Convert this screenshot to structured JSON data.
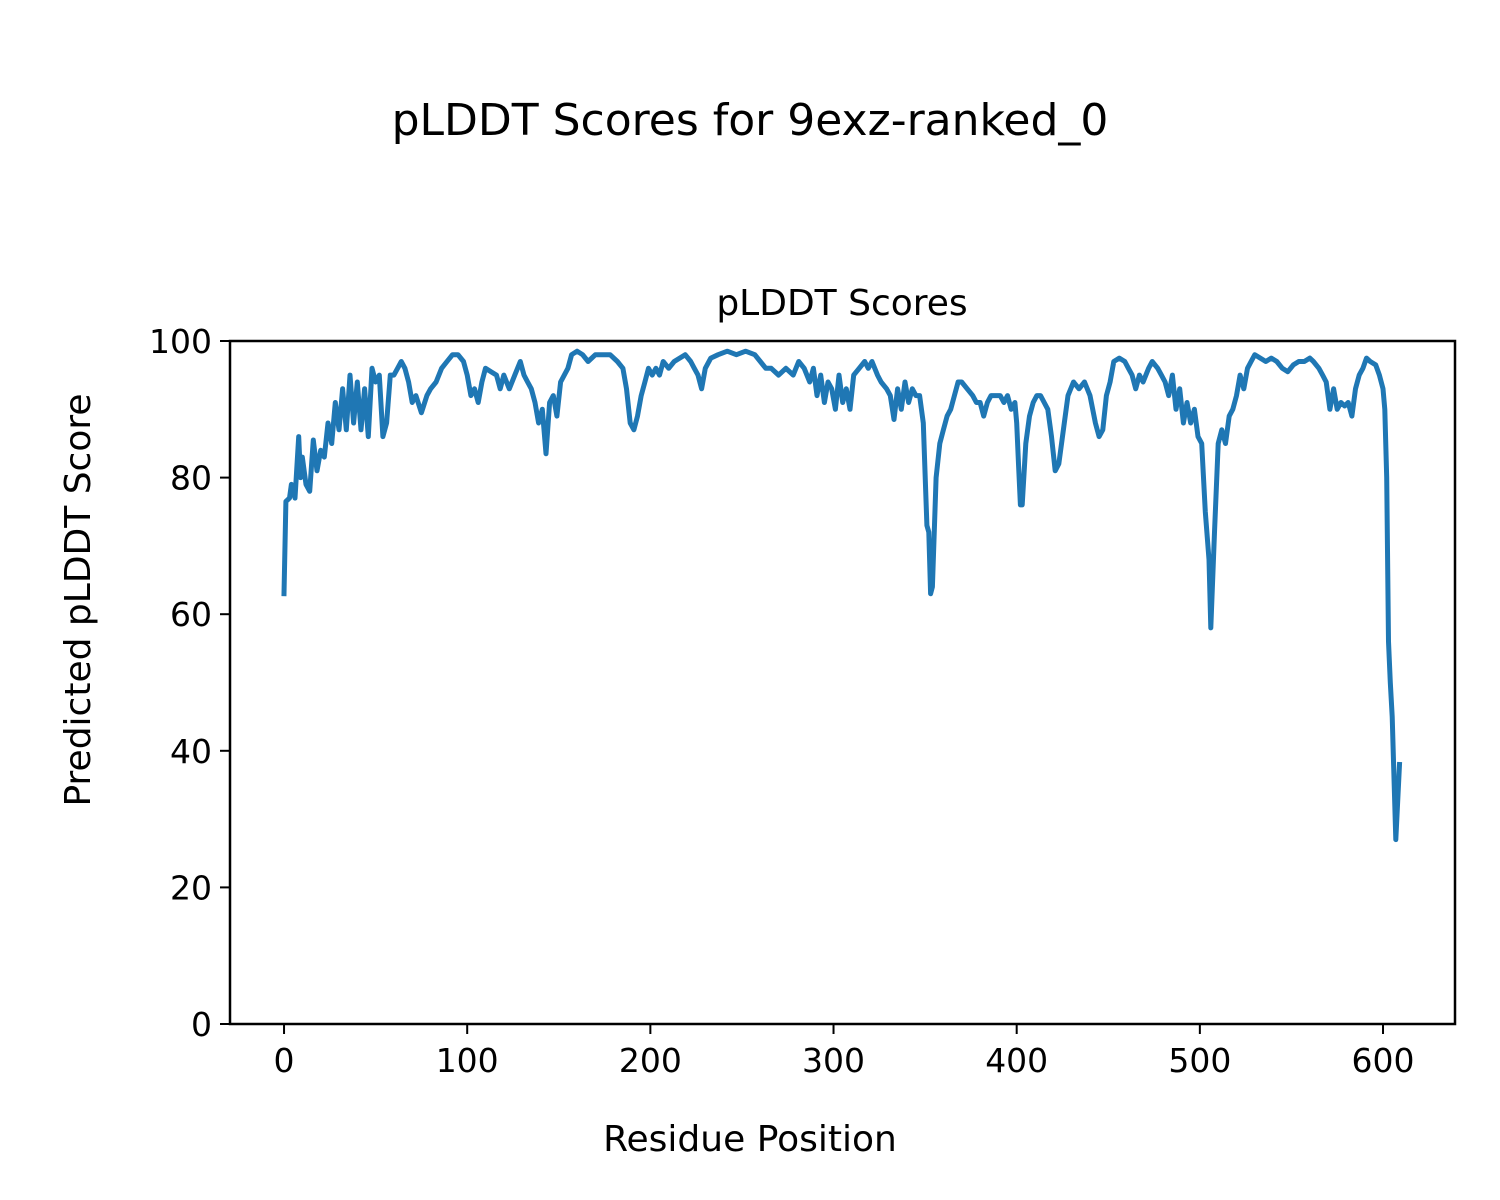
{
  "chart_data": {
    "type": "line",
    "title": "pLDDT Scores for 9exz-ranked_0",
    "subtitle": "pLDDT Scores",
    "xlabel": "Residue Position",
    "ylabel": "Predicted pLDDT Score",
    "xlim": [
      -29.5,
      639.3
    ],
    "ylim": [
      0,
      100
    ],
    "xticks": [
      0,
      100,
      200,
      300,
      400,
      500,
      600
    ],
    "xtick_labels": [
      "0",
      "100",
      "200",
      "300",
      "400",
      "500",
      "600"
    ],
    "yticks": [
      0,
      20,
      40,
      60,
      80,
      100
    ],
    "ytick_labels": [
      "0",
      "20",
      "40",
      "60",
      "80",
      "100"
    ],
    "grid": false,
    "series": [
      {
        "name": "pLDDT",
        "color": "#1f77b4",
        "points": [
          [
            0,
            63
          ],
          [
            1,
            76.5
          ],
          [
            3,
            77
          ],
          [
            4,
            79
          ],
          [
            6,
            77
          ],
          [
            8,
            86
          ],
          [
            9,
            80
          ],
          [
            10,
            83
          ],
          [
            12,
            79
          ],
          [
            14,
            78
          ],
          [
            16,
            85.5
          ],
          [
            18,
            81
          ],
          [
            20,
            84
          ],
          [
            22,
            83
          ],
          [
            24,
            88
          ],
          [
            26,
            85
          ],
          [
            28,
            91
          ],
          [
            30,
            87
          ],
          [
            32,
            93
          ],
          [
            34,
            87
          ],
          [
            36,
            95
          ],
          [
            38,
            88
          ],
          [
            40,
            94
          ],
          [
            42,
            87
          ],
          [
            44,
            93
          ],
          [
            46,
            86
          ],
          [
            48,
            96
          ],
          [
            50,
            94
          ],
          [
            52,
            95
          ],
          [
            54,
            86
          ],
          [
            56,
            88
          ],
          [
            58,
            95
          ],
          [
            60,
            95
          ],
          [
            62,
            96
          ],
          [
            64,
            97
          ],
          [
            66,
            96
          ],
          [
            68,
            94
          ],
          [
            70,
            91
          ],
          [
            72,
            92
          ],
          [
            75,
            89.5
          ],
          [
            78,
            92
          ],
          [
            80,
            93
          ],
          [
            83,
            94
          ],
          [
            86,
            96
          ],
          [
            89,
            97
          ],
          [
            92,
            98
          ],
          [
            95,
            98
          ],
          [
            98,
            97
          ],
          [
            100,
            95
          ],
          [
            102,
            92
          ],
          [
            104,
            93
          ],
          [
            106,
            91
          ],
          [
            108,
            94
          ],
          [
            110,
            96
          ],
          [
            113,
            95.5
          ],
          [
            116,
            95
          ],
          [
            118,
            93
          ],
          [
            120,
            95
          ],
          [
            123,
            93
          ],
          [
            126,
            95
          ],
          [
            129,
            97
          ],
          [
            131,
            95
          ],
          [
            133,
            94
          ],
          [
            135,
            93
          ],
          [
            137,
            91
          ],
          [
            139,
            88
          ],
          [
            141,
            90
          ],
          [
            143,
            83.5
          ],
          [
            145,
            91
          ],
          [
            147,
            92
          ],
          [
            149,
            89
          ],
          [
            151,
            94
          ],
          [
            153,
            95
          ],
          [
            155,
            96
          ],
          [
            157,
            98
          ],
          [
            160,
            98.5
          ],
          [
            163,
            98
          ],
          [
            166,
            97
          ],
          [
            170,
            98
          ],
          [
            174,
            98
          ],
          [
            178,
            98
          ],
          [
            182,
            97
          ],
          [
            185,
            96
          ],
          [
            187,
            93
          ],
          [
            189,
            88
          ],
          [
            191,
            87
          ],
          [
            193,
            89
          ],
          [
            195,
            92
          ],
          [
            197,
            94
          ],
          [
            199,
            96
          ],
          [
            201,
            95
          ],
          [
            203,
            96
          ],
          [
            205,
            95
          ],
          [
            207,
            97
          ],
          [
            210,
            96
          ],
          [
            213,
            97
          ],
          [
            216,
            97.5
          ],
          [
            219,
            98
          ],
          [
            222,
            97
          ],
          [
            224,
            96
          ],
          [
            226,
            95
          ],
          [
            228,
            93
          ],
          [
            230,
            96
          ],
          [
            233,
            97.5
          ],
          [
            237,
            98
          ],
          [
            242,
            98.5
          ],
          [
            247,
            98
          ],
          [
            252,
            98.5
          ],
          [
            257,
            98
          ],
          [
            260,
            97
          ],
          [
            263,
            96
          ],
          [
            266,
            96
          ],
          [
            270,
            95
          ],
          [
            274,
            96
          ],
          [
            278,
            95
          ],
          [
            281,
            97
          ],
          [
            284,
            96
          ],
          [
            287,
            94
          ],
          [
            289,
            96
          ],
          [
            291,
            92
          ],
          [
            293,
            95
          ],
          [
            295,
            91
          ],
          [
            297,
            94
          ],
          [
            299,
            93
          ],
          [
            301,
            90
          ],
          [
            303,
            95
          ],
          [
            305,
            91
          ],
          [
            307,
            93
          ],
          [
            309,
            90
          ],
          [
            311,
            95
          ],
          [
            314,
            96
          ],
          [
            317,
            97
          ],
          [
            319,
            96
          ],
          [
            321,
            97
          ],
          [
            324,
            95
          ],
          [
            326,
            94
          ],
          [
            329,
            93
          ],
          [
            331,
            92
          ],
          [
            333,
            88.5
          ],
          [
            335,
            93
          ],
          [
            337,
            90
          ],
          [
            339,
            94
          ],
          [
            341,
            91
          ],
          [
            343,
            93
          ],
          [
            345,
            92
          ],
          [
            347,
            92
          ],
          [
            349,
            88
          ],
          [
            351,
            73
          ],
          [
            352,
            72
          ],
          [
            353,
            63
          ],
          [
            354,
            64
          ],
          [
            356,
            80
          ],
          [
            358,
            85
          ],
          [
            360,
            87
          ],
          [
            362,
            89
          ],
          [
            364,
            90
          ],
          [
            366,
            92
          ],
          [
            368,
            94
          ],
          [
            370,
            94
          ],
          [
            373,
            93
          ],
          [
            376,
            92
          ],
          [
            378,
            91
          ],
          [
            380,
            91
          ],
          [
            382,
            89
          ],
          [
            384,
            91
          ],
          [
            386,
            92
          ],
          [
            389,
            92
          ],
          [
            391,
            92
          ],
          [
            393,
            91
          ],
          [
            395,
            92
          ],
          [
            397,
            90
          ],
          [
            399,
            91
          ],
          [
            400,
            88
          ],
          [
            401,
            82
          ],
          [
            402,
            76
          ],
          [
            403,
            76
          ],
          [
            405,
            85
          ],
          [
            407,
            89
          ],
          [
            409,
            91
          ],
          [
            411,
            92
          ],
          [
            413,
            92
          ],
          [
            415,
            91
          ],
          [
            417,
            90
          ],
          [
            419,
            86
          ],
          [
            421,
            81
          ],
          [
            423,
            82
          ],
          [
            426,
            88
          ],
          [
            428,
            92
          ],
          [
            431,
            94
          ],
          [
            434,
            93
          ],
          [
            437,
            94
          ],
          [
            440,
            92
          ],
          [
            443,
            88
          ],
          [
            445,
            86
          ],
          [
            447,
            87
          ],
          [
            449,
            92
          ],
          [
            451,
            94
          ],
          [
            453,
            97
          ],
          [
            456,
            97.5
          ],
          [
            459,
            97
          ],
          [
            461,
            96
          ],
          [
            463,
            95
          ],
          [
            465,
            93
          ],
          [
            467,
            95
          ],
          [
            469,
            94
          ],
          [
            472,
            96
          ],
          [
            474,
            97
          ],
          [
            477,
            96
          ],
          [
            479,
            95
          ],
          [
            481,
            94
          ],
          [
            483,
            92
          ],
          [
            485,
            95
          ],
          [
            487,
            90
          ],
          [
            489,
            93
          ],
          [
            491,
            88
          ],
          [
            493,
            91
          ],
          [
            495,
            88
          ],
          [
            497,
            90
          ],
          [
            499,
            86
          ],
          [
            501,
            85
          ],
          [
            503,
            75
          ],
          [
            505,
            68
          ],
          [
            506,
            58
          ],
          [
            508,
            72
          ],
          [
            510,
            85
          ],
          [
            512,
            87
          ],
          [
            514,
            85
          ],
          [
            516,
            89
          ],
          [
            518,
            90
          ],
          [
            520,
            92
          ],
          [
            522,
            95
          ],
          [
            524,
            93
          ],
          [
            526,
            96
          ],
          [
            528,
            97
          ],
          [
            530,
            98
          ],
          [
            533,
            97.5
          ],
          [
            536,
            97
          ],
          [
            539,
            97.5
          ],
          [
            542,
            97
          ],
          [
            545,
            96
          ],
          [
            548,
            95.5
          ],
          [
            551,
            96.5
          ],
          [
            554,
            97
          ],
          [
            557,
            97
          ],
          [
            560,
            97.5
          ],
          [
            562,
            97
          ],
          [
            565,
            96
          ],
          [
            567,
            95
          ],
          [
            569,
            94
          ],
          [
            571,
            90
          ],
          [
            573,
            93
          ],
          [
            575,
            90
          ],
          [
            577,
            91
          ],
          [
            579,
            90.5
          ],
          [
            581,
            91
          ],
          [
            583,
            89
          ],
          [
            585,
            93
          ],
          [
            587,
            95
          ],
          [
            589,
            96
          ],
          [
            591,
            97.5
          ],
          [
            593,
            97
          ],
          [
            596,
            96.5
          ],
          [
            598,
            95
          ],
          [
            600,
            93
          ],
          [
            601,
            90
          ],
          [
            602,
            80
          ],
          [
            603,
            56
          ],
          [
            604,
            50
          ],
          [
            605,
            45
          ],
          [
            607,
            27
          ],
          [
            609,
            38
          ]
        ]
      }
    ]
  }
}
